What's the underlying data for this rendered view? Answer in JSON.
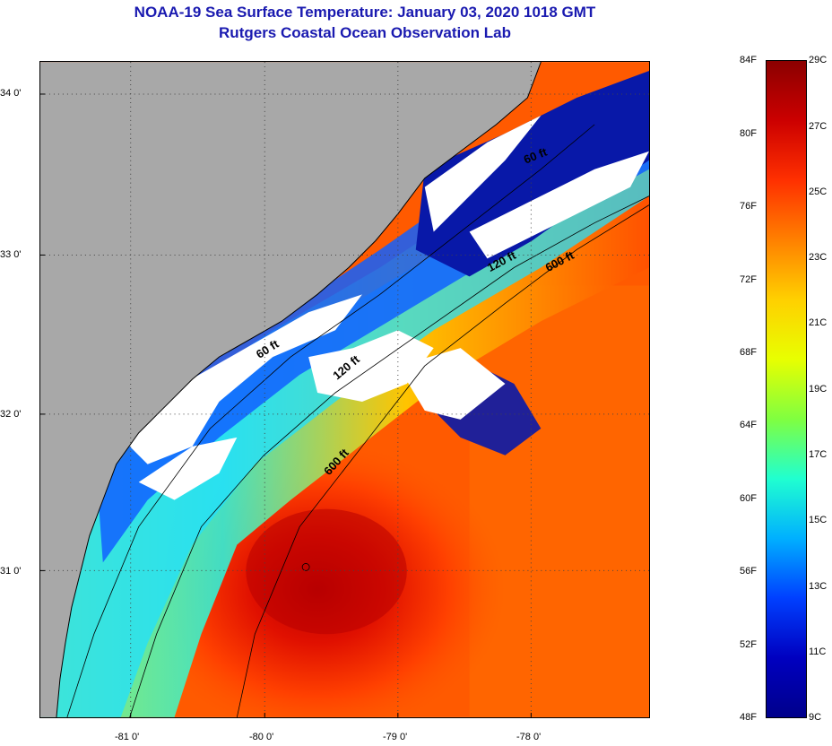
{
  "title": {
    "line1": "NOAA-19 Sea Surface Temperature:  January 03, 2020 1018 GMT",
    "line2": "Rutgers Coastal Ocean Observation Lab"
  },
  "map": {
    "lat_ticks": [
      {
        "lat": 34.0,
        "label": "34 0'"
      },
      {
        "lat": 33.0,
        "label": "33 0'"
      },
      {
        "lat": 32.0,
        "label": "32 0'"
      },
      {
        "lat": 31.0,
        "label": "31 0'"
      }
    ],
    "lon_ticks": [
      {
        "lon": -81.0,
        "label": "-81 0'"
      },
      {
        "lon": -80.0,
        "label": "-80 0'"
      },
      {
        "lon": -79.0,
        "label": "-79 0'"
      },
      {
        "lon": -78.0,
        "label": "-78 0'"
      }
    ],
    "depth_labels": [
      {
        "text": "60 ft"
      },
      {
        "text": "120 ft"
      },
      {
        "text": "600 ft"
      },
      {
        "text": "60 ft"
      },
      {
        "text": "120 ft"
      },
      {
        "text": "600 ft"
      }
    ],
    "colors": {
      "land": "#a8a8a8",
      "cloud": "#ffffff",
      "grid": "#444444"
    }
  },
  "colorbar": {
    "fahrenheit": [
      "84F",
      "80F",
      "76F",
      "72F",
      "68F",
      "64F",
      "60F",
      "56F",
      "52F",
      "48F"
    ],
    "celsius": [
      "29C",
      "27C",
      "25C",
      "23C",
      "21C",
      "19C",
      "17C",
      "15C",
      "13C",
      "11C",
      "9C"
    ],
    "colors_top_to_bottom": [
      "#8b0000",
      "#cc0000",
      "#ff3000",
      "#ff8000",
      "#ffd000",
      "#e8ff00",
      "#80ff40",
      "#20ffd0",
      "#00b0ff",
      "#0040ff",
      "#0000c0",
      "#00008b"
    ]
  }
}
